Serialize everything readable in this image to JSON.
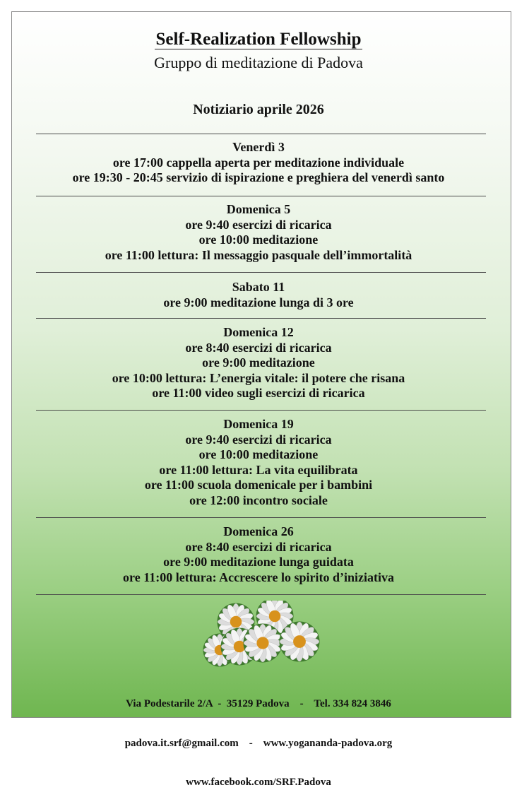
{
  "header": {
    "title": "Self-Realization Fellowship",
    "subtitle": "Gruppo di meditazione di Padova",
    "issue": "Notiziario aprile 2026"
  },
  "sections": [
    {
      "day": "Venerdì 3",
      "items": [
        "ore 17:00 cappella aperta per meditazione individuale",
        "ore 19:30 - 20:45 servizio di ispirazione e preghiera del venerdì santo"
      ]
    },
    {
      "day": "Domenica 5",
      "items": [
        "ore 9:40 esercizi di ricarica",
        "ore 10:00 meditazione",
        "ore 11:00 lettura: Il messaggio pasquale dell’immortalità"
      ]
    },
    {
      "day": "Sabato 11",
      "items": [
        "ore 9:00 meditazione lunga di 3 ore"
      ]
    },
    {
      "day": "Domenica 12",
      "items": [
        "ore 8:40 esercizi di ricarica",
        "ore 9:00 meditazione",
        "ore 10:00 lettura: L’energia vitale: il potere che risana",
        "ore 11:00 video sugli esercizi di ricarica"
      ]
    },
    {
      "day": "Domenica 19",
      "items": [
        "ore 9:40 esercizi di ricarica",
        "ore 10:00 meditazione",
        "ore 11:00 lettura: La vita equilibrata",
        "ore 11:00 scuola domenicale per i bambini",
        "ore 12:00 incontro sociale"
      ]
    },
    {
      "day": "Domenica 26",
      "items": [
        "ore 8:40 esercizi di ricarica",
        "ore 9:00 meditazione lunga guidata",
        "ore 11:00 lettura: Accrescere lo spirito d’iniziativa"
      ]
    }
  ],
  "footer": {
    "address": "Via Podestarile 2/A  -  35129 Padova    -    Tel. 334 824 3846",
    "contacts": "padova.it.srf@gmail.com    -    www.yogananda-padova.org",
    "facebook": "www.facebook.com/SRF.Padova"
  },
  "image": {
    "icon": "daisy-flowers-image"
  },
  "colors": {
    "gradient_top": "#ffffff",
    "gradient_bottom": "#6fb650",
    "text": "#111111"
  }
}
